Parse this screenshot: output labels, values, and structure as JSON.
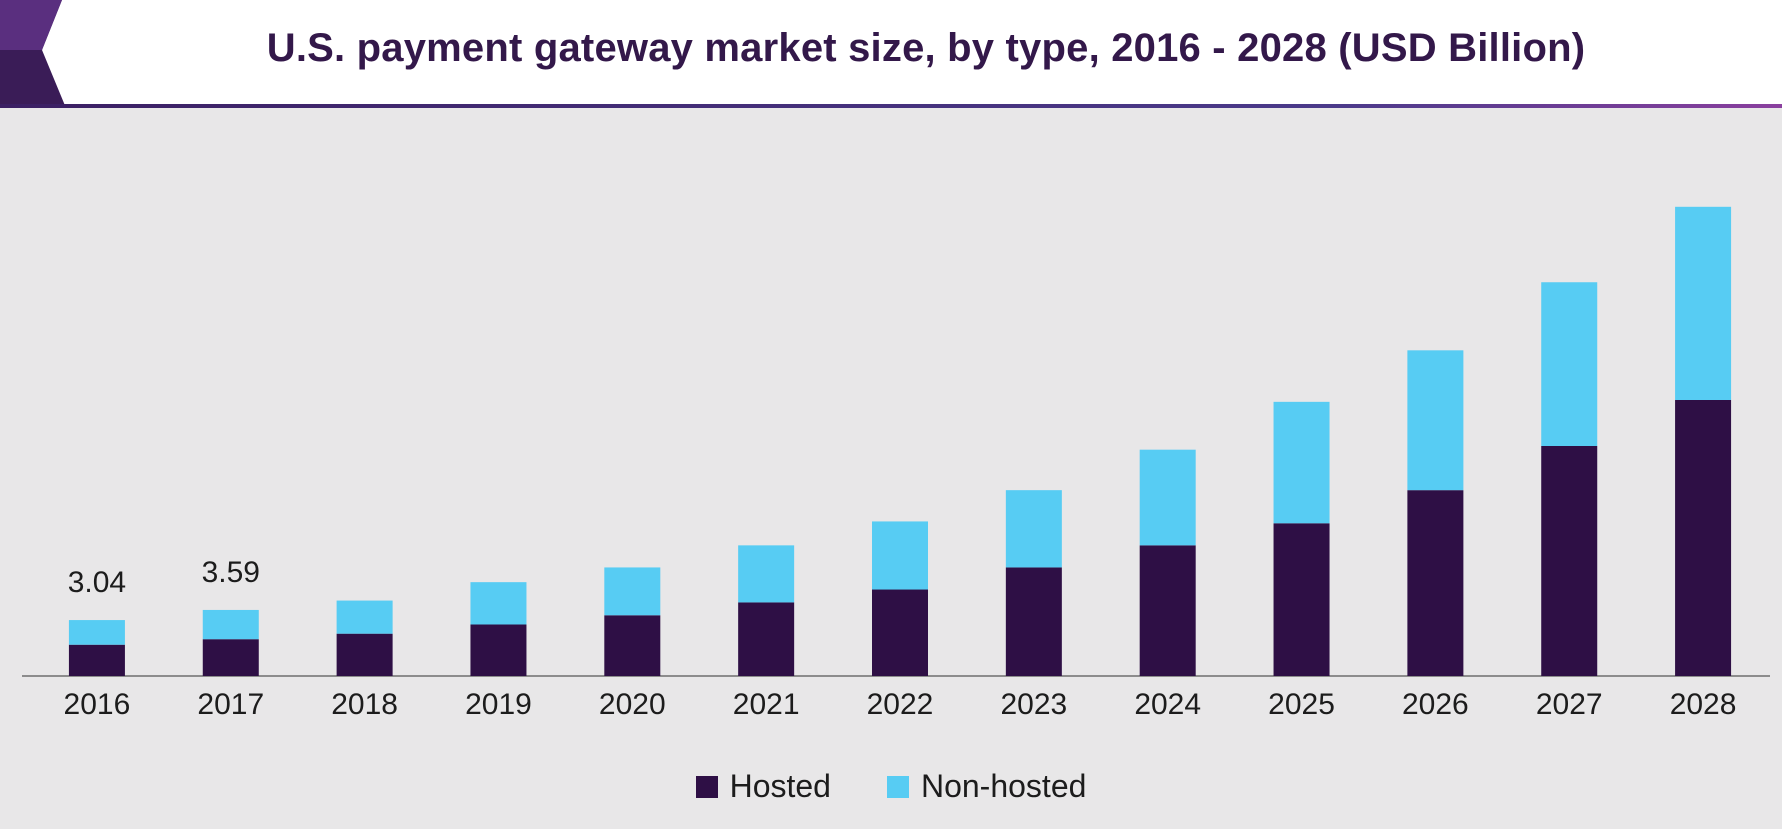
{
  "title": "U.S. payment gateway market size, by type, 2016 - 2028 (USD Billion)",
  "colors": {
    "hosted": "#2e0f45",
    "non_hosted": "#57ccf3",
    "title": "#33184a",
    "accent": "#4b2a6b",
    "background": "#e8e7e8"
  },
  "chart_data": {
    "type": "bar",
    "stacked": true,
    "title": "U.S. payment gateway market size, by type, 2016 - 2028 (USD Billion)",
    "categories": [
      "2016",
      "2017",
      "2018",
      "2019",
      "2020",
      "2021",
      "2022",
      "2023",
      "2024",
      "2025",
      "2026",
      "2027",
      "2028"
    ],
    "series": [
      {
        "name": "Hosted",
        "color": "#2e0f45",
        "values": [
          1.7,
          2.0,
          2.3,
          2.8,
          3.3,
          4.0,
          4.7,
          5.9,
          7.1,
          8.3,
          10.1,
          12.5,
          15.0
        ]
      },
      {
        "name": "Non-hosted",
        "color": "#57ccf3",
        "values": [
          1.34,
          1.59,
          1.8,
          2.3,
          2.6,
          3.1,
          3.7,
          4.2,
          5.2,
          6.6,
          7.6,
          8.9,
          10.5
        ]
      }
    ],
    "data_labels": [
      {
        "category": "2016",
        "text": "3.04"
      },
      {
        "category": "2017",
        "text": "3.59"
      }
    ],
    "ylim": [
      0,
      27.5
    ],
    "legend": "bottom-center",
    "grid": false
  }
}
